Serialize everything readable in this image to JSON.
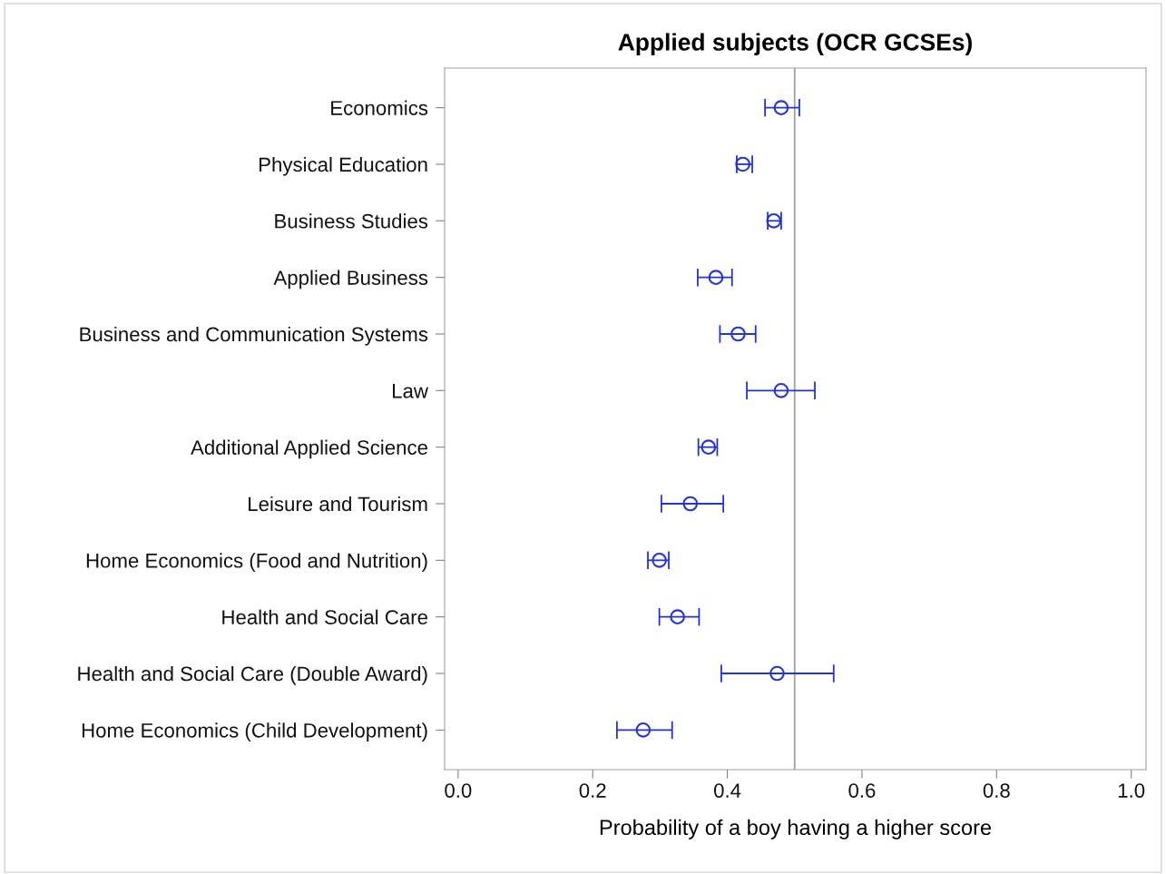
{
  "chart_data": {
    "type": "scatter",
    "title": "Applied subjects (OCR GCSEs)",
    "xlabel": "Probability of a boy having a higher score",
    "orientation": "horizontal",
    "categories": [
      "Economics",
      "Physical Education",
      "Business Studies",
      "Applied Business",
      "Business and Communication Systems",
      "Law",
      "Additional Applied Science",
      "Leisure and Tourism",
      "Home Economics (Food and Nutrition)",
      "Health and Social Care",
      "Health and Social Care (Double Award)",
      "Home Economics (Child Development)"
    ],
    "color": "#2233dd",
    "values": [
      0.48,
      0.423,
      0.469,
      0.383,
      0.416,
      0.48,
      0.372,
      0.345,
      0.299,
      0.326,
      0.474,
      0.275
    ],
    "errors": [
      [
        0.456,
        0.507
      ],
      [
        0.414,
        0.437
      ],
      [
        0.46,
        0.48
      ],
      [
        0.356,
        0.407
      ],
      [
        0.389,
        0.442
      ],
      [
        0.429,
        0.53
      ],
      [
        0.357,
        0.385
      ],
      [
        0.302,
        0.394
      ],
      [
        0.282,
        0.313
      ],
      [
        0.299,
        0.358
      ],
      [
        0.391,
        0.558
      ],
      [
        0.236,
        0.318
      ]
    ],
    "xlim": [
      -0.02,
      1.022
    ],
    "xticks": [
      {
        "value": 0,
        "label": "0.0"
      },
      {
        "value": 0.2,
        "label": "0.2"
      },
      {
        "value": 0.4,
        "label": "0.4"
      },
      {
        "value": 0.6,
        "label": "0.6"
      },
      {
        "value": 0.8,
        "label": "0.8"
      },
      {
        "value": 1,
        "label": "1.0"
      }
    ],
    "ref_lines": [
      {
        "axis": "x",
        "value": 0.5,
        "color": "#a0a0a0"
      }
    ],
    "marker": "circle",
    "grid": false,
    "legend": false
  }
}
